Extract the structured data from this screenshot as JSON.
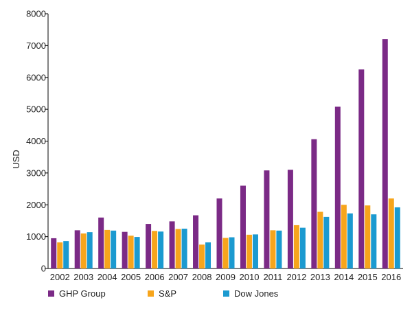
{
  "chart_data": {
    "type": "bar",
    "title": "",
    "xlabel": "",
    "ylabel": "USD",
    "ylim": [
      0,
      8000
    ],
    "yticks": [
      0,
      1000,
      2000,
      3000,
      4000,
      5000,
      6000,
      7000,
      8000
    ],
    "grid": false,
    "legend_position": "bottom-left",
    "categories": [
      "2002",
      "2003",
      "2004",
      "2005",
      "2006",
      "2007",
      "2008",
      "2009",
      "2010",
      "2011",
      "2012",
      "2013",
      "2014",
      "2015",
      "2016"
    ],
    "series": [
      {
        "name": "GHP Group",
        "color": "#7b2a86",
        "values": [
          950,
          1200,
          1600,
          1150,
          1400,
          1480,
          1670,
          2200,
          2600,
          3080,
          3100,
          4060,
          5080,
          6250,
          7200
        ]
      },
      {
        "name": "S&P",
        "color": "#f7a51c",
        "values": [
          820,
          1100,
          1210,
          1030,
          1180,
          1240,
          750,
          960,
          1060,
          1200,
          1360,
          1780,
          2000,
          1980,
          2200
        ]
      },
      {
        "name": "Dow Jones",
        "color": "#1b9ad0",
        "values": [
          860,
          1140,
          1190,
          990,
          1160,
          1250,
          820,
          980,
          1070,
          1190,
          1280,
          1620,
          1730,
          1700,
          1920
        ]
      }
    ]
  }
}
